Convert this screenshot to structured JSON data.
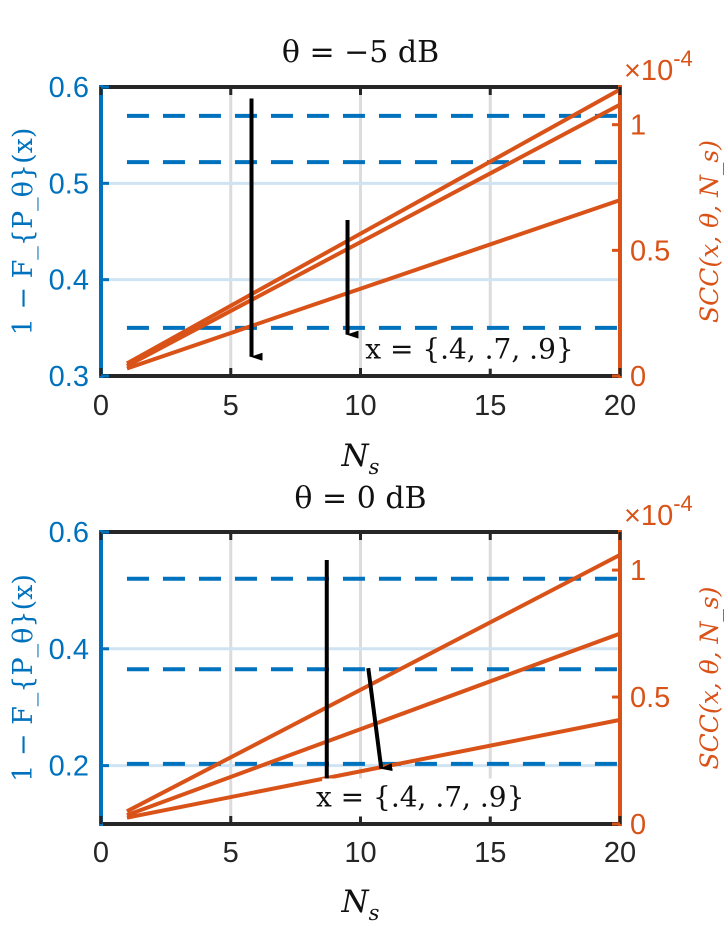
{
  "colors": {
    "left_axis": "#0072BD",
    "right_axis": "#D95319",
    "frame": "#262626",
    "grid": "#dcdcdc"
  },
  "chart_data": [
    {
      "type": "line",
      "title": "θ = −5 dB",
      "xlabel": "N_s",
      "xlabel_base": "N",
      "xlabel_sub": "s",
      "ylabel_left": "1 − F_{P_θ}(x)",
      "ylabel_right": "SCC(x, θ, N_s)",
      "right_exponent": "×10",
      "right_exponent_power": "-4",
      "xlim": [
        0,
        20
      ],
      "ylim_left": [
        0.3,
        0.6
      ],
      "ylim_right": [
        0,
        1.15
      ],
      "xticks": [
        "0",
        "5",
        "10",
        "15",
        "20"
      ],
      "yticks_left": [
        "0.3",
        "0.4",
        "0.5",
        "0.6"
      ],
      "yticks_right": [
        "0",
        "0.5",
        "1"
      ],
      "grid": true,
      "dashed_series_left_axis": [
        {
          "x": [
            1,
            20
          ],
          "y": [
            0.57,
            0.57
          ]
        },
        {
          "x": [
            1,
            20
          ],
          "y": [
            0.522,
            0.522
          ]
        },
        {
          "x": [
            1,
            20
          ],
          "y": [
            0.35,
            0.35
          ]
        }
      ],
      "solid_series_right_axis": [
        {
          "x": [
            1,
            20
          ],
          "y": [
            0.05,
            1.14
          ]
        },
        {
          "x": [
            1,
            20
          ],
          "y": [
            0.04,
            1.08
          ]
        },
        {
          "x": [
            1,
            20
          ],
          "y": [
            0.03,
            0.7
          ]
        }
      ],
      "annotation": "x = {.4, .7, .9}"
    },
    {
      "type": "line",
      "title": "θ = 0 dB",
      "xlabel": "N_s",
      "xlabel_base": "N",
      "xlabel_sub": "s",
      "ylabel_left": "1 − F_{P_θ}(x)",
      "ylabel_right": "SCC(x, θ, N_s)",
      "right_exponent": "×10",
      "right_exponent_power": "-4",
      "xlim": [
        0,
        20
      ],
      "ylim_left": [
        0.1,
        0.6
      ],
      "ylim_right": [
        0,
        1.15
      ],
      "xticks": [
        "0",
        "5",
        "10",
        "15",
        "20"
      ],
      "yticks_left": [
        "0.2",
        "0.4",
        "0.6"
      ],
      "yticks_right": [
        "0",
        "0.5",
        "1"
      ],
      "grid": true,
      "dashed_series_left_axis": [
        {
          "x": [
            1,
            20
          ],
          "y": [
            0.52,
            0.52
          ]
        },
        {
          "x": [
            1,
            20
          ],
          "y": [
            0.365,
            0.365
          ]
        },
        {
          "x": [
            1,
            20
          ],
          "y": [
            0.203,
            0.203
          ]
        }
      ],
      "solid_series_right_axis": [
        {
          "x": [
            1,
            20
          ],
          "y": [
            0.05,
            1.06
          ]
        },
        {
          "x": [
            1,
            20
          ],
          "y": [
            0.035,
            0.75
          ]
        },
        {
          "x": [
            1,
            20
          ],
          "y": [
            0.025,
            0.41
          ]
        }
      ],
      "annotation": "x = {.4, .7, .9}"
    }
  ]
}
